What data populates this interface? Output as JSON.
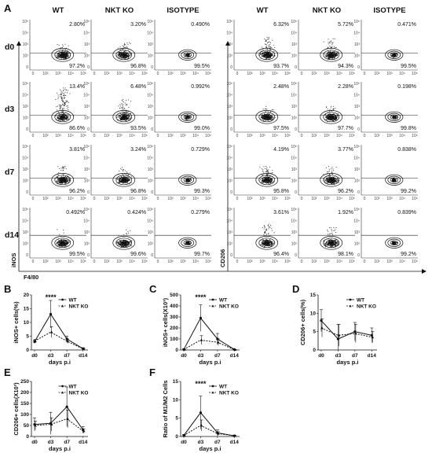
{
  "panel_a": {
    "label": "A",
    "left_headers": [
      "WT",
      "NKT KO",
      "ISOTYPE"
    ],
    "right_headers": [
      "WT",
      "NKT KO",
      "ISOTYPE"
    ],
    "rows": [
      "d0",
      "d3",
      "d7",
      "d14"
    ],
    "left_y_axis": "iNOS",
    "right_y_axis": "CD206",
    "x_axis": "F4/80",
    "tick_labels": [
      "10⁵",
      "10⁴",
      "10³",
      "10²",
      "0",
      "10²",
      "10³",
      "10⁴",
      "10⁵"
    ],
    "left": [
      [
        {
          "top": "2.80%",
          "bottom": "97.2%"
        },
        {
          "top": "3.20%",
          "bottom": "96.8%"
        },
        {
          "top": "0.490%",
          "bottom": "99.5%"
        }
      ],
      [
        {
          "top": "13.4%",
          "bottom": "86.6%"
        },
        {
          "top": "6.48%",
          "bottom": "93.5%"
        },
        {
          "top": "0.992%",
          "bottom": "99.0%"
        }
      ],
      [
        {
          "top": "3.81%",
          "bottom": "96.2%"
        },
        {
          "top": "3.24%",
          "bottom": "96.8%"
        },
        {
          "top": "0.729%",
          "bottom": "99.3%"
        }
      ],
      [
        {
          "top": "0.492%",
          "bottom": "99.5%"
        },
        {
          "top": "0.424%",
          "bottom": "99.6%"
        },
        {
          "top": "0.279%",
          "bottom": "99.7%"
        }
      ]
    ],
    "right": [
      [
        {
          "top": "6.32%",
          "bottom": "93.7%"
        },
        {
          "top": "5.72%",
          "bottom": "94.3%"
        },
        {
          "top": "0.471%",
          "bottom": "99.5%"
        }
      ],
      [
        {
          "top": "2.48%",
          "bottom": "97.5%"
        },
        {
          "top": "2.28%",
          "bottom": "97.7%"
        },
        {
          "top": "0.198%",
          "bottom": "99.8%"
        }
      ],
      [
        {
          "top": "4.19%",
          "bottom": "95.8%"
        },
        {
          "top": "3.77%",
          "bottom": "96.2%"
        },
        {
          "top": "0.838%",
          "bottom": "99.2%"
        }
      ],
      [
        {
          "top": "3.61%",
          "bottom": "96.4%"
        },
        {
          "top": "1.92%",
          "bottom": "98.1%"
        },
        {
          "top": "0.839%",
          "bottom": "99.2%"
        }
      ]
    ]
  },
  "chart_data": [
    {
      "id": "B",
      "type": "line",
      "categories": [
        "d0",
        "d3",
        "d7",
        "d14"
      ],
      "xlabel": "days p.i",
      "ylabel": "iNOS+ cells(%)",
      "ylim": [
        0,
        20
      ],
      "yticks": [
        0,
        5,
        10,
        15,
        20
      ],
      "series": [
        {
          "name": "WT",
          "values": [
            3,
            13,
            4,
            0.5
          ],
          "err": [
            0.6,
            5,
            1,
            0.3
          ]
        },
        {
          "name": "NKT KO",
          "values": [
            3.2,
            6.5,
            3.2,
            0.4
          ],
          "err": [
            0.6,
            2,
            0.8,
            0.2
          ]
        }
      ],
      "annotation": "****",
      "annotation_at": "d3"
    },
    {
      "id": "C",
      "type": "line",
      "categories": [
        "d0",
        "d3",
        "d7",
        "d14"
      ],
      "xlabel": "days p.i",
      "ylabel": "iNOS+ cells(X10³)",
      "ylim": [
        0,
        500
      ],
      "yticks": [
        0,
        100,
        200,
        300,
        400,
        500
      ],
      "series": [
        {
          "name": "WT",
          "values": [
            5,
            290,
            100,
            5
          ],
          "err": [
            5,
            120,
            50,
            3
          ]
        },
        {
          "name": "NKT KO",
          "values": [
            5,
            90,
            70,
            3
          ],
          "err": [
            3,
            40,
            30,
            2
          ]
        }
      ],
      "annotation": "****",
      "annotation_at": "d3"
    },
    {
      "id": "D",
      "type": "line",
      "categories": [
        "d0",
        "d3",
        "d7",
        "d14"
      ],
      "xlabel": "days p.i",
      "ylabel": "CD206+ cells(%)",
      "ylim": [
        0,
        15
      ],
      "yticks": [
        0,
        5,
        10,
        15
      ],
      "series": [
        {
          "name": "WT",
          "values": [
            8,
            3,
            5,
            4
          ],
          "err": [
            3,
            4,
            2.5,
            2
          ]
        },
        {
          "name": "NKT KO",
          "values": [
            6,
            4,
            4.5,
            3.5
          ],
          "err": [
            2.5,
            3,
            2.5,
            1.5
          ]
        }
      ]
    },
    {
      "id": "E",
      "type": "line",
      "categories": [
        "d0",
        "d3",
        "d7",
        "d14"
      ],
      "xlabel": "days p.i",
      "ylabel": "CD206+ cells(X10³)",
      "ylim": [
        0,
        250
      ],
      "yticks": [
        0,
        50,
        100,
        150,
        200,
        250
      ],
      "series": [
        {
          "name": "WT",
          "values": [
            55,
            60,
            135,
            30
          ],
          "err": [
            30,
            50,
            90,
            15
          ]
        },
        {
          "name": "NKT KO",
          "values": [
            50,
            55,
            80,
            25
          ],
          "err": [
            20,
            30,
            40,
            10
          ]
        }
      ]
    },
    {
      "id": "F",
      "type": "line",
      "categories": [
        "d0",
        "d3",
        "d7",
        "d14"
      ],
      "xlabel": "days p.i",
      "ylabel": "Ratio of M1/M2 Cells",
      "ylim": [
        0,
        15
      ],
      "yticks": [
        0,
        5,
        10,
        15
      ],
      "series": [
        {
          "name": "WT",
          "values": [
            0.3,
            6.5,
            1,
            0.2
          ],
          "err": [
            0.2,
            4.5,
            0.8,
            0.1
          ]
        },
        {
          "name": "NKT KO",
          "values": [
            0.3,
            3,
            0.8,
            0.2
          ],
          "err": [
            0.2,
            1.5,
            0.5,
            0.1
          ]
        }
      ],
      "annotation": "****",
      "annotation_at": "d3"
    }
  ]
}
